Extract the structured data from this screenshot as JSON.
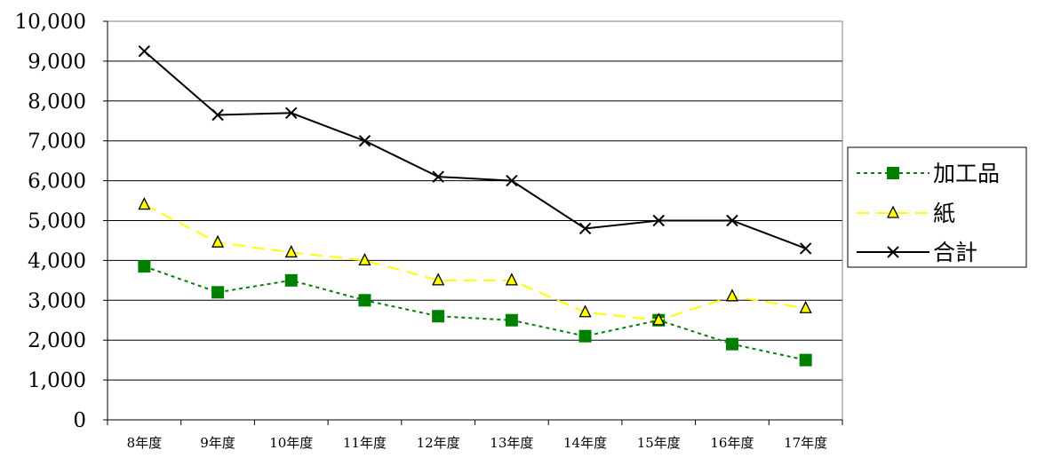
{
  "chart_data": {
    "type": "line",
    "categories": [
      "8年度",
      "9年度",
      "10年度",
      "11年度",
      "12年度",
      "13年度",
      "14年度",
      "15年度",
      "16年度",
      "17年度"
    ],
    "ylim": [
      0,
      10000
    ],
    "yticks": [
      0,
      1000,
      2000,
      3000,
      4000,
      5000,
      6000,
      7000,
      8000,
      9000,
      10000
    ],
    "ytick_labels": [
      "0",
      "1,000",
      "2,000",
      "3,000",
      "4,000",
      "5,000",
      "6,000",
      "7,000",
      "8,000",
      "9,000",
      "10,000"
    ],
    "grid": true,
    "legend_position": "right",
    "series": [
      {
        "name": "加工品",
        "values": [
          3850,
          3200,
          3500,
          3000,
          2600,
          2500,
          2100,
          2500,
          1900,
          1500
        ],
        "color": "#008000",
        "line_style": "dotted",
        "marker": "square"
      },
      {
        "name": "紙",
        "values": [
          5400,
          4450,
          4200,
          4000,
          3500,
          3500,
          2700,
          2500,
          3100,
          2800
        ],
        "color": "#ffff00",
        "line_style": "dashed",
        "marker": "triangle"
      },
      {
        "name": "合計",
        "values": [
          9250,
          7650,
          7700,
          7000,
          6100,
          6000,
          4800,
          5000,
          5000,
          4300
        ],
        "color": "#000000",
        "line_style": "solid",
        "marker": "x"
      }
    ]
  }
}
